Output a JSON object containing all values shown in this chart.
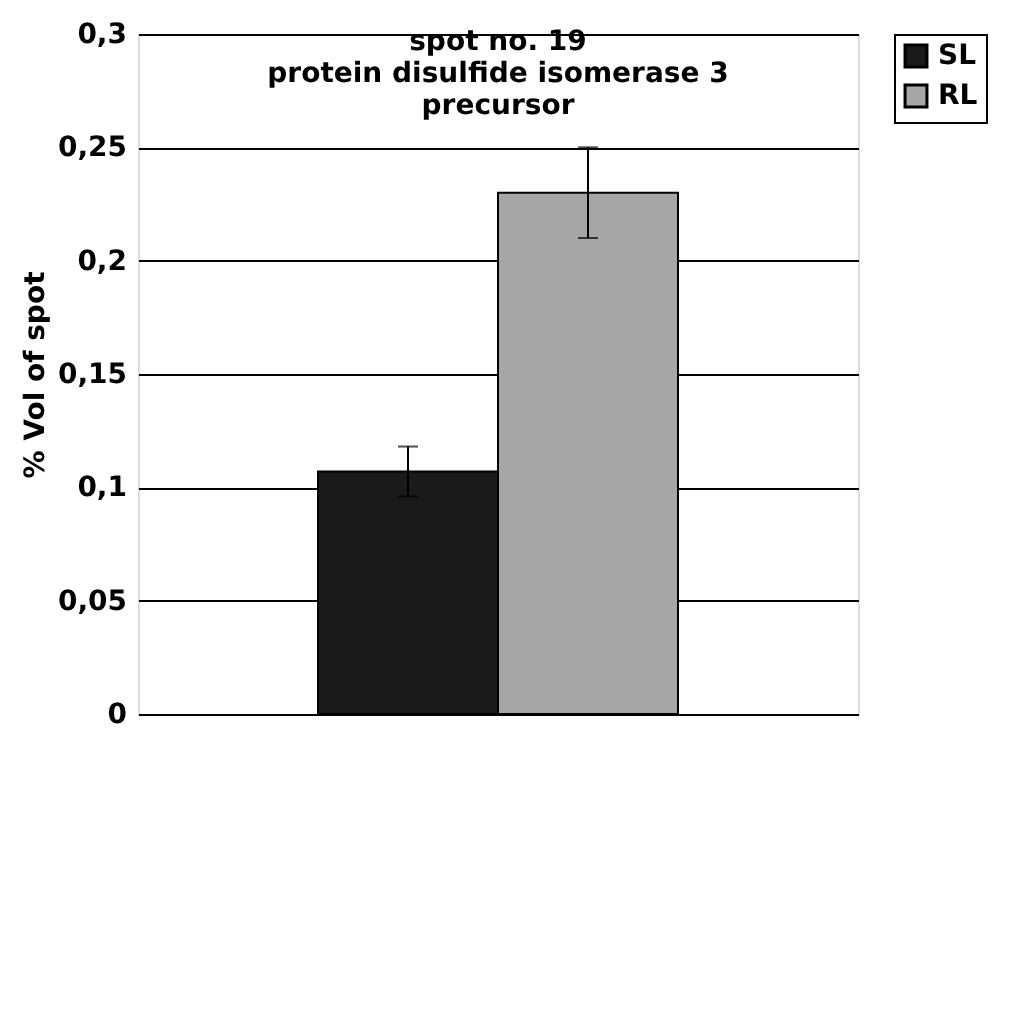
{
  "chart_data": {
    "type": "bar",
    "title": [
      "spot no. 19",
      "protein disulfide isomerase 3",
      "precursor"
    ],
    "ylabel": "% Vol of spot",
    "categories": [
      null
    ],
    "series": [
      {
        "name": "SL",
        "color": "#1a1a1a",
        "values": [
          0.107
        ],
        "errors": [
          0.011
        ]
      },
      {
        "name": "RL",
        "color": "#a6a6a6",
        "values": [
          0.23
        ],
        "errors": [
          0.02
        ]
      }
    ],
    "ylim": [
      0,
      0.3
    ],
    "yticks": [
      0,
      {
        "value": 0.05,
        "label": "0,05"
      },
      {
        "value": 0.1,
        "label": "0,1"
      },
      {
        "value": 0.15,
        "label": "0,15"
      },
      {
        "value": 0.2,
        "label": "0,2"
      },
      {
        "value": 0.25,
        "label": "0,25"
      },
      {
        "value": 0.3,
        "label": "0,3"
      }
    ],
    "grid": "y",
    "legend": "top right"
  }
}
